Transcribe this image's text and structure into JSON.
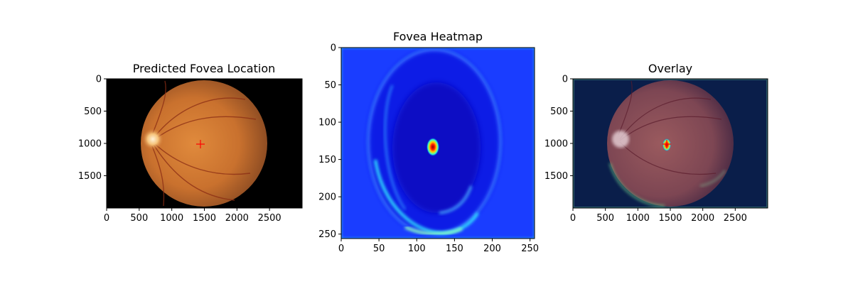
{
  "chart_data": [
    {
      "type": "image",
      "title": "Predicted Fovea Location",
      "xlim": [
        0,
        3000
      ],
      "ylim": [
        2000,
        0
      ],
      "xticks": [
        0,
        500,
        1000,
        1500,
        2000,
        2500
      ],
      "yticks": [
        0,
        500,
        1000,
        1500
      ],
      "marker": {
        "x": 1450,
        "y": 1010,
        "color": "#ff0000",
        "shape": "plus"
      },
      "background_color": "#000000"
    },
    {
      "type": "heatmap",
      "title": "Fovea Heatmap",
      "colormap": "jet",
      "xlim": [
        0,
        256
      ],
      "ylim": [
        256,
        0
      ],
      "xticks": [
        0,
        50,
        100,
        150,
        200,
        250
      ],
      "yticks": [
        0,
        50,
        100,
        150,
        200,
        250
      ],
      "peak": {
        "x": 123,
        "y": 132
      }
    },
    {
      "type": "image",
      "title": "Overlay",
      "xlim": [
        0,
        3000
      ],
      "ylim": [
        2000,
        0
      ],
      "xticks": [
        0,
        500,
        1000,
        1500,
        2000,
        2500
      ],
      "yticks": [
        0,
        500,
        1000,
        1500
      ],
      "marker": {
        "x": 1450,
        "y": 1010,
        "color": "#ff0000",
        "shape": "plus"
      },
      "background_color": "#0a1e4a"
    }
  ]
}
